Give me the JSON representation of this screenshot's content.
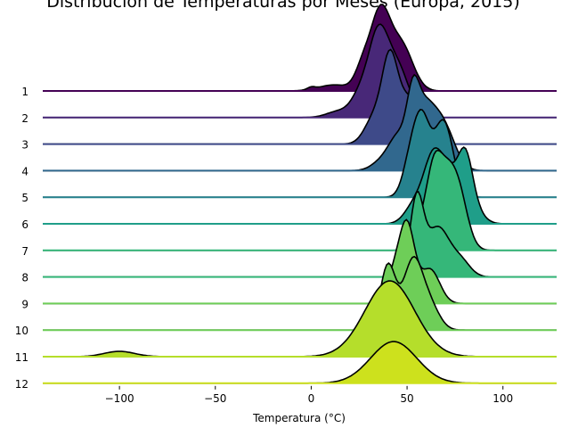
{
  "chart_data": {
    "type": "ridgeline",
    "title": "Distribución de Temperaturas por Meses (Europa, 2015)",
    "xlabel": "Temperatura (°C)",
    "ylabel": "",
    "xlim": [
      -140,
      128
    ],
    "xticks": [
      -100,
      -50,
      0,
      50,
      100
    ],
    "grid": false,
    "legend": "none",
    "categories": [
      "1",
      "2",
      "3",
      "4",
      "5",
      "6",
      "7",
      "8",
      "9",
      "10",
      "11",
      "12"
    ],
    "colors": [
      "#440154",
      "#482878",
      "#3e4a89",
      "#31688e",
      "#26828e",
      "#1f9e89",
      "#35b779",
      "#35b779",
      "#6ece58",
      "#6ece58",
      "#b5de2b",
      "#cde11d"
    ],
    "series": [
      {
        "category": "1",
        "components": [
          [
            36,
            5,
            1.0
          ],
          [
            47,
            6,
            0.6
          ],
          [
            27,
            4,
            0.3
          ],
          [
            12,
            8,
            0.08
          ],
          [
            0,
            2,
            0.03
          ]
        ]
      },
      {
        "category": "2",
        "components": [
          [
            35,
            5,
            1.0
          ],
          [
            45,
            6,
            0.65
          ],
          [
            26,
            5,
            0.3
          ],
          [
            14,
            6,
            0.08
          ]
        ]
      },
      {
        "category": "3",
        "components": [
          [
            41,
            4,
            1.0
          ],
          [
            51,
            6,
            0.6
          ],
          [
            33,
            5,
            0.35
          ]
        ]
      },
      {
        "category": "4",
        "components": [
          [
            53,
            3,
            0.55
          ],
          [
            58,
            6,
            0.8
          ],
          [
            69,
            6,
            0.55
          ],
          [
            45,
            5,
            0.4
          ],
          [
            36,
            5,
            0.1
          ]
        ]
      },
      {
        "category": "5",
        "components": [
          [
            58,
            4,
            0.9
          ],
          [
            69,
            5,
            1.0
          ],
          [
            52,
            4,
            0.5
          ]
        ]
      },
      {
        "category": "6",
        "components": [
          [
            64,
            5,
            0.9
          ],
          [
            80,
            4,
            0.85
          ],
          [
            72,
            4,
            0.45
          ],
          [
            54,
            5,
            0.25
          ],
          [
            85,
            5,
            0.15
          ]
        ]
      },
      {
        "category": "7",
        "components": [
          [
            64,
            4,
            1.0
          ],
          [
            76,
            5,
            0.85
          ],
          [
            70,
            4,
            0.5
          ],
          [
            57,
            4,
            0.25
          ]
        ]
      },
      {
        "category": "8",
        "components": [
          [
            55,
            3.5,
            1.0
          ],
          [
            66,
            6,
            0.65
          ],
          [
            78,
            5,
            0.2
          ]
        ]
      },
      {
        "category": "9",
        "components": [
          [
            50,
            4,
            1.0
          ],
          [
            62,
            5,
            0.45
          ],
          [
            43,
            4,
            0.35
          ]
        ]
      },
      {
        "category": "10",
        "components": [
          [
            40,
            4,
            0.85
          ],
          [
            53,
            5,
            0.9
          ],
          [
            62,
            5,
            0.3
          ]
        ]
      },
      {
        "category": "11",
        "components": [
          [
            41,
            13,
            1.0
          ],
          [
            -100,
            8,
            0.07
          ]
        ]
      },
      {
        "category": "12",
        "components": [
          [
            43,
            12,
            0.55
          ]
        ]
      }
    ]
  }
}
